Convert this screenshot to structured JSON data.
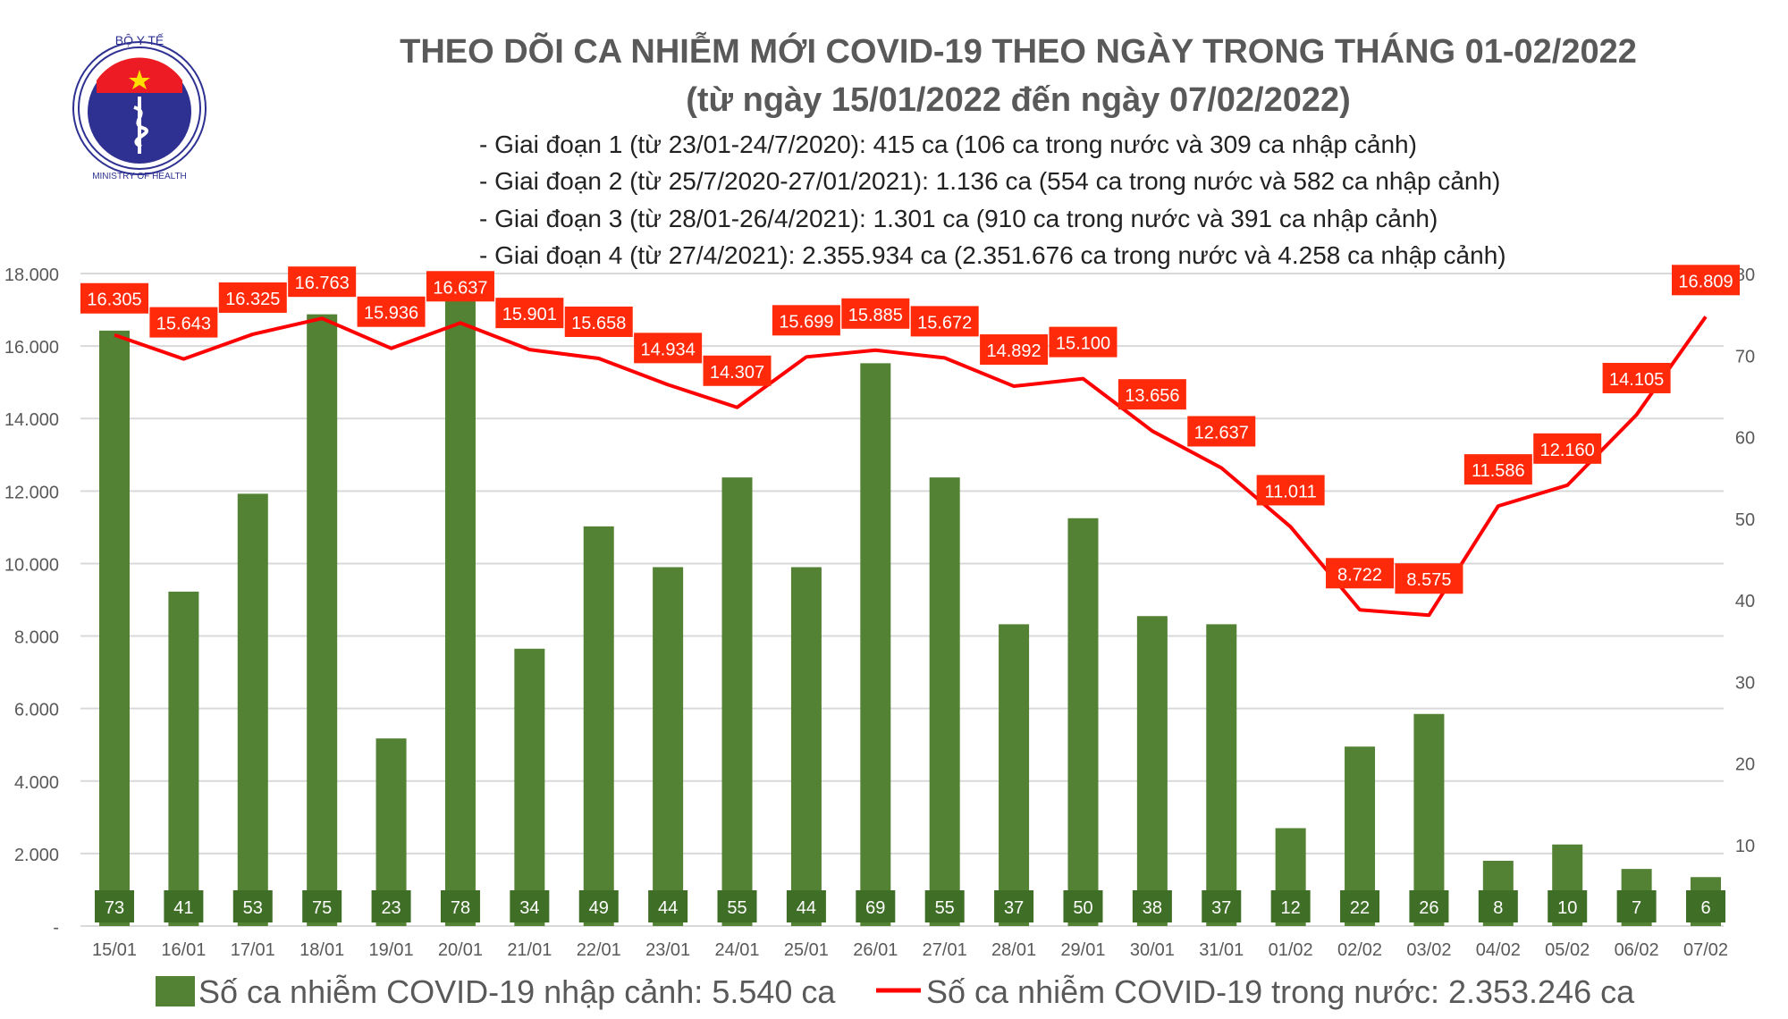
{
  "logo": {
    "text_top": "BỘ Y TẾ",
    "text_bottom": "MINISTRY OF HEALTH"
  },
  "header": {
    "title": "THEO DÕI CA NHIỄM MỚI COVID-19 THEO NGÀY TRONG THÁNG 01-02/2022",
    "subtitle": "(từ ngày 15/01/2022 đến ngày 07/02/2022)",
    "phases": [
      "- Giai đoạn 1 (từ 23/01-24/7/2020): 415 ca (106 ca trong nước và 309 ca nhập cảnh)",
      "- Giai đoạn 2 (từ 25/7/2020-27/01/2021): 1.136 ca (554 ca trong nước và 582 ca nhập cảnh)",
      "- Giai đoạn 3 (từ 28/01-26/4/2021): 1.301 ca (910 ca trong nước và 391 ca nhập cảnh)",
      "- Giai đoạn 4 (từ 27/4/2021): 2.355.934 ca (2.351.676 ca trong nước và 4.258 ca nhập cảnh)"
    ]
  },
  "colors": {
    "bar": "#548235",
    "line": "#ff0000",
    "label_box": "#ff2a0a",
    "text": "#595959",
    "grid": "#d9d9d9"
  },
  "chart_data": {
    "type": "bar+line",
    "categories": [
      "15/01",
      "16/01",
      "17/01",
      "18/01",
      "19/01",
      "20/01",
      "21/01",
      "22/01",
      "23/01",
      "24/01",
      "25/01",
      "26/01",
      "27/01",
      "28/01",
      "29/01",
      "30/01",
      "31/01",
      "01/02",
      "02/02",
      "03/02",
      "04/02",
      "05/02",
      "06/02",
      "07/02"
    ],
    "series": [
      {
        "name": "Số ca nhiễm COVID-19 nhập cảnh: 5.540 ca",
        "type": "bar",
        "axis": "right",
        "values": [
          73,
          41,
          53,
          75,
          23,
          78,
          34,
          49,
          44,
          55,
          44,
          69,
          55,
          37,
          50,
          38,
          37,
          12,
          22,
          26,
          8,
          10,
          7,
          6
        ]
      },
      {
        "name": "Số ca nhiễm COVID-19 trong nước: 2.353.246 ca",
        "type": "line",
        "axis": "left",
        "values": [
          16305,
          15643,
          16325,
          16763,
          15936,
          16637,
          15901,
          15658,
          14934,
          14307,
          15699,
          15885,
          15672,
          14892,
          15100,
          13656,
          12637,
          11011,
          8722,
          8575,
          11586,
          12160,
          14105,
          16809
        ]
      }
    ],
    "left_axis": {
      "range": [
        0,
        18000
      ],
      "ticks": [
        "-",
        "2.000",
        "4.000",
        "6.000",
        "8.000",
        "10.000",
        "12.000",
        "14.000",
        "16.000",
        "18.000"
      ]
    },
    "right_axis": {
      "range": [
        0,
        80
      ],
      "ticks": [
        "10",
        "20",
        "30",
        "40",
        "50",
        "60",
        "70",
        "80"
      ]
    },
    "grid": true,
    "legend": "bottom"
  }
}
